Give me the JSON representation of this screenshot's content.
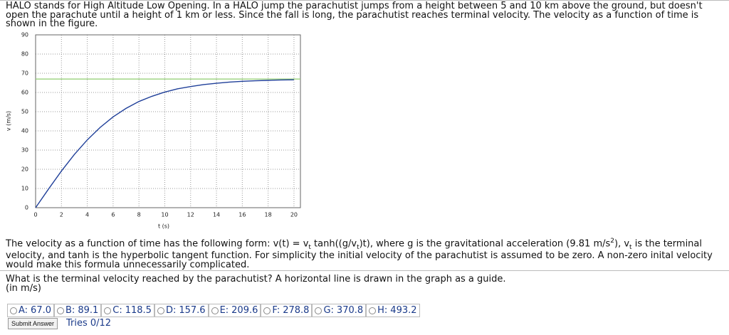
{
  "intro": "HALO stands for High Altitude Low Opening. In a HALO jump the parachutist jumps from a height between 5 and 10 km above the ground, but doesn't open the parachute until a height of 1 km or less. Since the fall is long, the parachutist reaches terminal velocity. The velocity as a function of time is shown in the figure.",
  "chart_data": {
    "type": "line",
    "x_label": "t (s)",
    "y_label": "v (m/s)",
    "x": [
      0,
      1,
      2,
      3,
      4,
      5,
      6,
      7,
      8,
      9,
      10,
      11,
      12,
      13,
      14,
      15,
      16,
      17,
      18,
      19,
      20
    ],
    "series": [
      {
        "color": "#1f3f99",
        "values": [
          0,
          9.7,
          19.1,
          27.7,
          35.3,
          41.8,
          47.3,
          51.7,
          55.3,
          58.0,
          60.2,
          61.9,
          63.1,
          64.1,
          64.8,
          65.4,
          65.8,
          66.1,
          66.3,
          66.5,
          66.6
        ]
      }
    ],
    "guide_line": {
      "value": 67,
      "color": "#8fce6e"
    },
    "xlim": [
      0,
      20.5
    ],
    "ylim": [
      0,
      90
    ],
    "xticks": [
      0,
      2,
      4,
      6,
      8,
      10,
      12,
      14,
      16,
      18,
      20
    ],
    "yticks": [
      0,
      10,
      20,
      30,
      40,
      50,
      60,
      70,
      80,
      90
    ],
    "grid": true
  },
  "explanation": [
    "The velocity as a function of time has the following form: v(t) = v",
    "t",
    " tanh((g/v",
    "t",
    ")t), where g is the gravitational acceleration (9.81 m/s",
    "2",
    "), v",
    "t",
    " is the terminal velocity, and tanh is the hyperbolic tangent function. For simplicity the initial velocity of the parachutist is assumed to be zero. A non-zero inital velocity would make this formula unnecessarily complicated."
  ],
  "question": [
    "What is the terminal velocity reached by the parachutist? A horizontal line is drawn in the graph as a guide.",
    "(in m/s)"
  ],
  "answers": [
    {
      "letter": "A:",
      "text": "67.0"
    },
    {
      "letter": "B:",
      "text": "89.1"
    },
    {
      "letter": "C:",
      "text": "118.5"
    },
    {
      "letter": "D:",
      "text": "157.6"
    },
    {
      "letter": "E:",
      "text": "209.6"
    },
    {
      "letter": "F:",
      "text": "278.8"
    },
    {
      "letter": "G:",
      "text": "370.8"
    },
    {
      "letter": "H:",
      "text": "493.2"
    }
  ],
  "submit": "Submit Answer",
  "tries": "Tries 0/12"
}
